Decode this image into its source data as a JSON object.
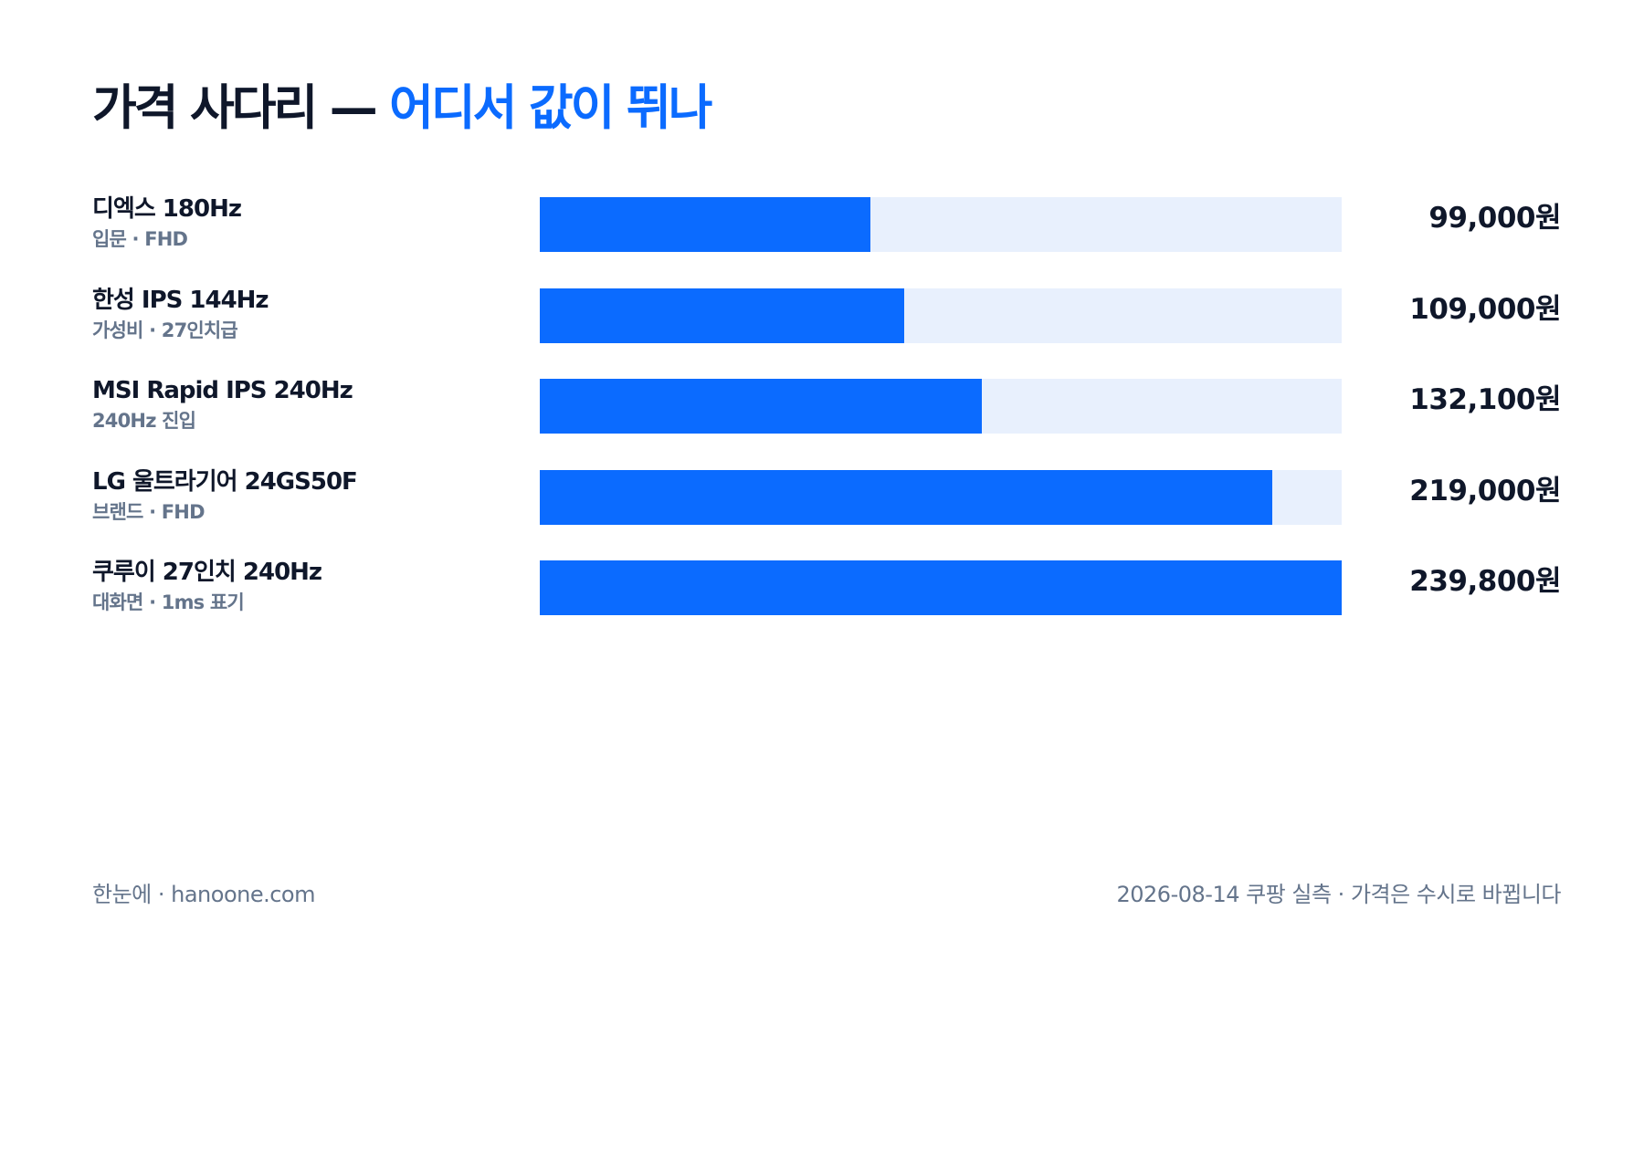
{
  "header": {
    "title_main": "가격 사다리 — ",
    "title_accent": "어디서 값이 뛰나"
  },
  "colors": {
    "bar_fill": "#0b6bff",
    "bar_track": "#e8f0fd",
    "text_primary": "#0f172a",
    "text_secondary": "#64748b",
    "accent": "#0b6bff"
  },
  "chart_data": {
    "type": "bar",
    "orientation": "horizontal",
    "xlim": [
      0,
      239800
    ],
    "grid": false,
    "legend": "none",
    "categories": [
      "디엑스 180Hz",
      "한성 IPS 144Hz",
      "MSI Rapid IPS 240Hz",
      "LG 울트라기어 24GS50F",
      "쿠루이 27인치 240Hz"
    ],
    "subtitles": [
      "입문 · FHD",
      "가성비 · 27인치급",
      "240Hz 진입",
      "브랜드 · FHD",
      "대화면 · 1ms 표기"
    ],
    "values": [
      99000,
      109000,
      132100,
      219000,
      239800
    ],
    "value_labels": [
      "99,000원",
      "109,000원",
      "132,100원",
      "219,000원",
      "239,800원"
    ]
  },
  "footer": {
    "left": "한눈에 · hanoone.com",
    "right": "2026-08-14 쿠팡 실측 · 가격은 수시로 바뀝니다"
  }
}
